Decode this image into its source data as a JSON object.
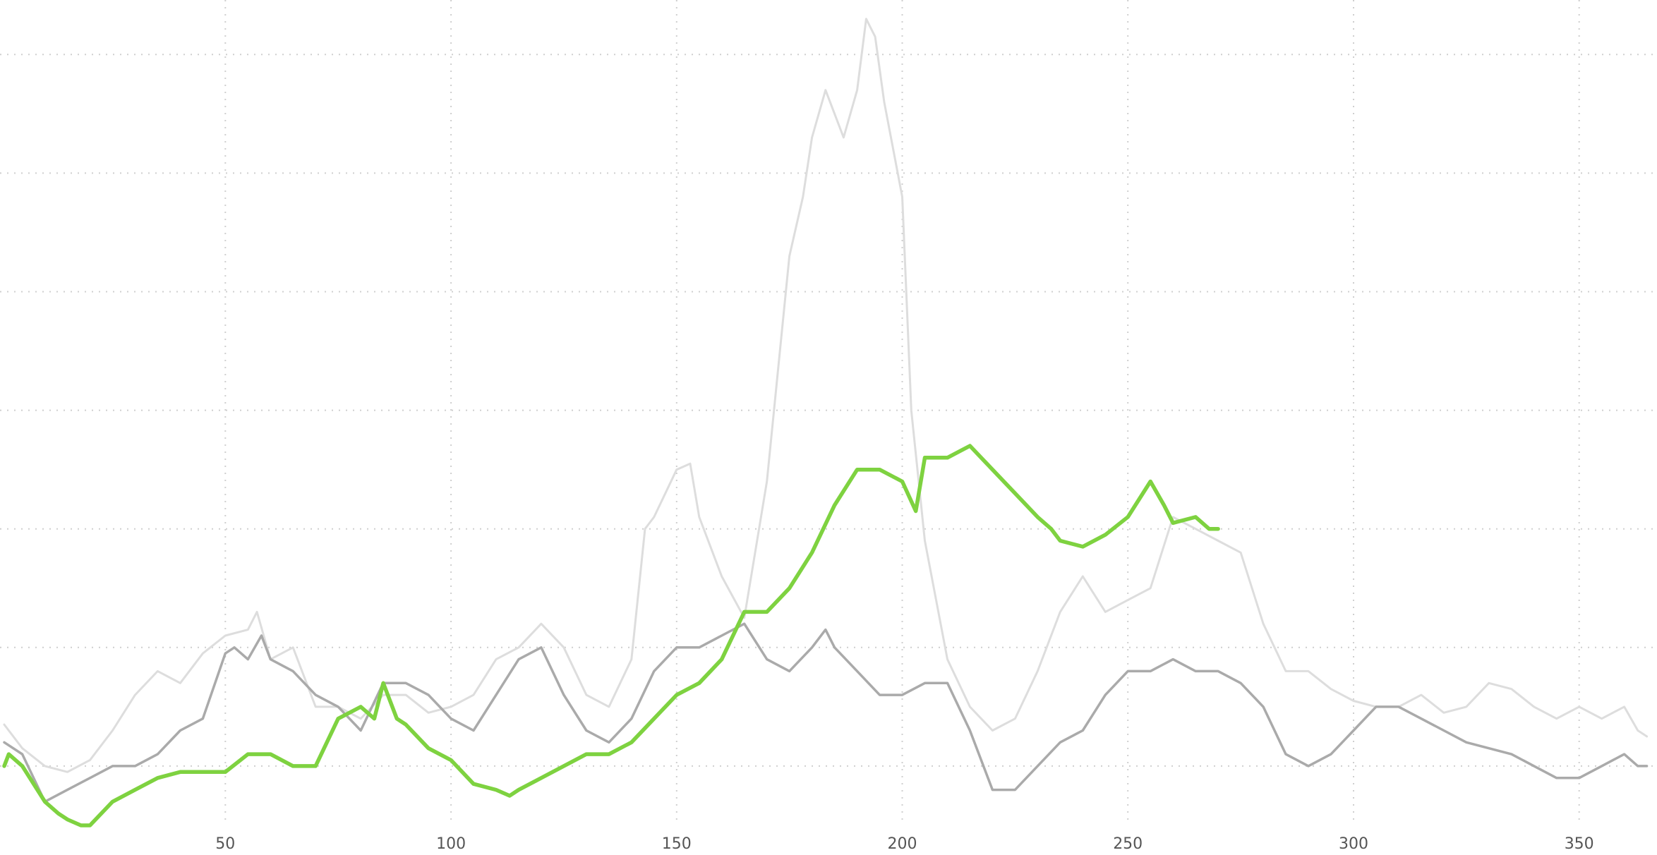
{
  "chart_data": {
    "type": "line",
    "xlim": [
      1,
      366
    ],
    "ylim": [
      -0.5,
      6.4
    ],
    "x_ticks": [
      50,
      100,
      150,
      200,
      250,
      300,
      350
    ],
    "x_tick_labels": [
      "50",
      "100",
      "150",
      "200",
      "250",
      "300",
      "350"
    ],
    "y_gridlines": [
      0,
      1,
      2,
      3,
      4,
      5,
      6
    ],
    "grid": true,
    "grid_style": "dotted",
    "legend": false,
    "colors": {
      "highlight": "#7ed240",
      "mid": "#aaaaaa",
      "light": "#dddddd",
      "grid": "#cfcfcf"
    },
    "series": [
      {
        "style": "light",
        "x": [
          1,
          5,
          10,
          15,
          20,
          25,
          30,
          35,
          40,
          45,
          50,
          55,
          57,
          60,
          65,
          70,
          75,
          80,
          85,
          90,
          95,
          100,
          105,
          110,
          115,
          120,
          125,
          130,
          135,
          140,
          143,
          145,
          150,
          153,
          155,
          160,
          165,
          170,
          175,
          178,
          180,
          183,
          185,
          187,
          190,
          192,
          194,
          196,
          198,
          200,
          202,
          205,
          210,
          215,
          220,
          225,
          230,
          235,
          240,
          245,
          250,
          255,
          260,
          265,
          270,
          275,
          280,
          285,
          290,
          295,
          300,
          305,
          310,
          315,
          320,
          325,
          330,
          335,
          340,
          345,
          350,
          355,
          360,
          363,
          365
        ],
        "y": [
          0.35,
          0.15,
          0.0,
          -0.05,
          0.05,
          0.3,
          0.6,
          0.8,
          0.7,
          0.95,
          1.1,
          1.15,
          1.3,
          0.9,
          1.0,
          0.5,
          0.5,
          0.4,
          0.6,
          0.6,
          0.45,
          0.5,
          0.6,
          0.9,
          1.0,
          1.2,
          1.0,
          0.6,
          0.5,
          0.9,
          2.0,
          2.1,
          2.5,
          2.55,
          2.1,
          1.6,
          1.25,
          2.4,
          4.3,
          4.8,
          5.3,
          5.7,
          5.5,
          5.3,
          5.7,
          6.3,
          6.15,
          5.6,
          5.2,
          4.8,
          3.0,
          1.9,
          0.9,
          0.5,
          0.3,
          0.4,
          0.8,
          1.3,
          1.6,
          1.3,
          1.4,
          1.5,
          2.1,
          2.0,
          1.9,
          1.8,
          1.2,
          0.8,
          0.8,
          0.65,
          0.55,
          0.5,
          0.5,
          0.6,
          0.45,
          0.5,
          0.7,
          0.65,
          0.5,
          0.4,
          0.5,
          0.4,
          0.5,
          0.3,
          0.25
        ]
      },
      {
        "style": "mid",
        "x": [
          1,
          5,
          10,
          15,
          20,
          25,
          30,
          35,
          40,
          45,
          50,
          52,
          55,
          58,
          60,
          65,
          70,
          75,
          80,
          85,
          90,
          95,
          100,
          105,
          110,
          115,
          120,
          125,
          130,
          135,
          140,
          145,
          150,
          155,
          160,
          165,
          170,
          175,
          180,
          183,
          185,
          190,
          195,
          200,
          205,
          210,
          215,
          220,
          225,
          230,
          235,
          240,
          245,
          250,
          255,
          260,
          265,
          270,
          275,
          280,
          285,
          290,
          295,
          300,
          305,
          310,
          315,
          320,
          325,
          330,
          335,
          340,
          345,
          350,
          355,
          360,
          363,
          365
        ],
        "y": [
          0.2,
          0.1,
          -0.3,
          -0.2,
          -0.1,
          0.0,
          0.0,
          0.1,
          0.3,
          0.4,
          0.95,
          1.0,
          0.9,
          1.1,
          0.9,
          0.8,
          0.6,
          0.5,
          0.3,
          0.7,
          0.7,
          0.6,
          0.4,
          0.3,
          0.6,
          0.9,
          1.0,
          0.6,
          0.3,
          0.2,
          0.4,
          0.8,
          1.0,
          1.0,
          1.1,
          1.2,
          0.9,
          0.8,
          1.0,
          1.15,
          1.0,
          0.8,
          0.6,
          0.6,
          0.7,
          0.7,
          0.3,
          -0.2,
          -0.2,
          0.0,
          0.2,
          0.3,
          0.6,
          0.8,
          0.8,
          0.9,
          0.8,
          0.8,
          0.7,
          0.5,
          0.1,
          0.0,
          0.1,
          0.3,
          0.5,
          0.5,
          0.4,
          0.3,
          0.2,
          0.15,
          0.1,
          0.0,
          -0.1,
          -0.1,
          0.0,
          0.1,
          0.0,
          0.0
        ]
      },
      {
        "style": "highlight",
        "x": [
          1,
          2,
          5,
          10,
          13,
          15,
          18,
          20,
          25,
          30,
          35,
          40,
          45,
          50,
          55,
          60,
          65,
          70,
          75,
          80,
          83,
          85,
          88,
          90,
          95,
          100,
          105,
          110,
          113,
          115,
          120,
          125,
          130,
          135,
          140,
          145,
          150,
          155,
          160,
          165,
          170,
          175,
          180,
          185,
          190,
          195,
          200,
          203,
          205,
          210,
          215,
          220,
          225,
          230,
          233,
          235,
          240,
          245,
          250,
          255,
          258,
          260,
          265,
          268,
          270
        ],
        "y": [
          0.0,
          0.1,
          0.0,
          -0.3,
          -0.4,
          -0.45,
          -0.5,
          -0.5,
          -0.3,
          -0.2,
          -0.1,
          -0.05,
          -0.05,
          -0.05,
          0.1,
          0.1,
          0.0,
          0.0,
          0.4,
          0.5,
          0.4,
          0.7,
          0.4,
          0.35,
          0.15,
          0.05,
          -0.15,
          -0.2,
          -0.25,
          -0.2,
          -0.1,
          0.0,
          0.1,
          0.1,
          0.2,
          0.4,
          0.6,
          0.7,
          0.9,
          1.3,
          1.3,
          1.5,
          1.8,
          2.2,
          2.5,
          2.5,
          2.4,
          2.15,
          2.6,
          2.6,
          2.7,
          2.5,
          2.3,
          2.1,
          2.0,
          1.9,
          1.85,
          1.95,
          2.1,
          2.4,
          2.2,
          2.05,
          2.1,
          2.0,
          2.0
        ]
      }
    ]
  }
}
